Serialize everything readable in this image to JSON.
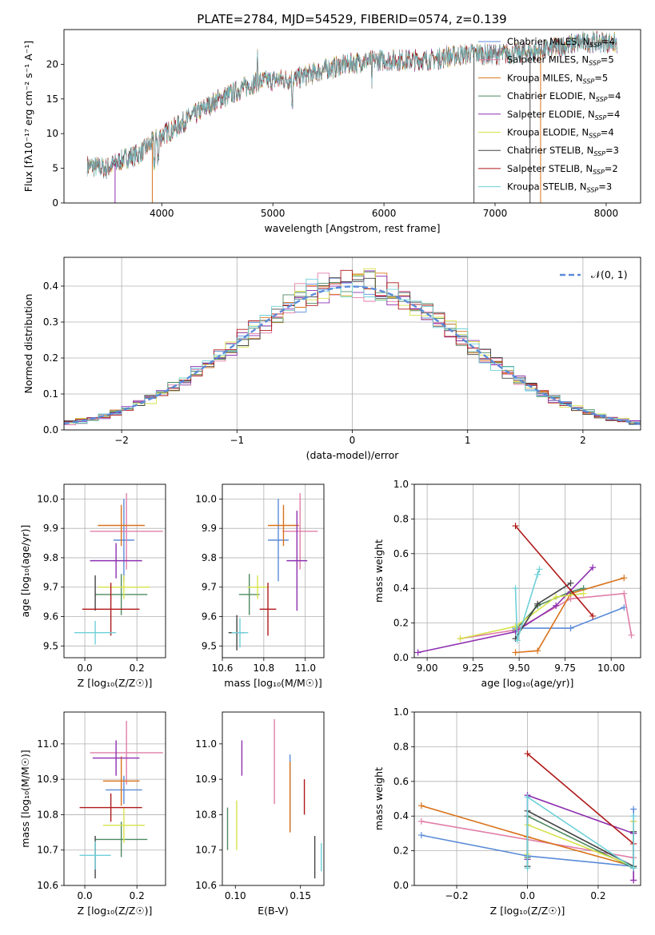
{
  "colors": [
    "#5b8bd8",
    "#e07ea8",
    "#d9731c",
    "#4e8a60",
    "#8e2fb0",
    "#d6e24a",
    "#444444",
    "#b01818",
    "#6fd0d8"
  ],
  "chart_data": [
    {
      "type": "line",
      "title": "PLATE=2784, MJD=54529, FIBERID=0574, z=0.139",
      "xlabel": "wavelength [Angstrom, rest frame]",
      "ylabel": "Flux [fλ10⁻¹⁷ erg cm⁻² s⁻¹ A⁻¹]",
      "xlim": [
        3120,
        8310
      ],
      "ylim": [
        0,
        25
      ],
      "xticks": [
        4000,
        5000,
        6000,
        7000,
        8000
      ],
      "yticks": [
        0,
        5,
        10,
        15,
        20
      ],
      "grid": false,
      "legend_position": "top-right",
      "continuum": {
        "x": [
          3320,
          3500,
          3650,
          3800,
          3950,
          4000,
          4100,
          4300,
          4500,
          4700,
          4860,
          5000,
          5200,
          5500,
          5800,
          6000,
          6200,
          6400,
          6600,
          6800,
          7000,
          7200,
          7400,
          7600,
          7800,
          8000,
          8100
        ],
        "y": [
          5.4,
          5.0,
          6.3,
          7.1,
          9.2,
          9.8,
          10.6,
          12.8,
          14.8,
          16.3,
          17.5,
          17.7,
          17.9,
          19.4,
          20.4,
          20.6,
          20.6,
          20.6,
          21.1,
          21.6,
          21.4,
          21.6,
          21.9,
          22.6,
          23.2,
          23.2,
          23.0
        ]
      },
      "series": [
        {
          "name": "Chabrier MILES, N$_{SSP}$=4",
          "label": "Chabrier MILES, N",
          "sub": "SSP",
          "suffix": "=4"
        },
        {
          "name": "Salpeter MILES, N$_{SSP}$=5",
          "label": "Salpeter MILES, N",
          "sub": "SSP",
          "suffix": "=5"
        },
        {
          "name": "Kroupa MILES, N$_{SSP}$=5",
          "label": "Kroupa MILES, N",
          "sub": "SSP",
          "suffix": "=5"
        },
        {
          "name": "Chabrier ELODIE, N$_{SSP}$=4",
          "label": "Chabrier ELODIE, N",
          "sub": "SSP",
          "suffix": "=4"
        },
        {
          "name": "Salpeter ELODIE, N$_{SSP}$=4",
          "label": "Salpeter ELODIE, N",
          "sub": "SSP",
          "suffix": "=4"
        },
        {
          "name": "Kroupa ELODIE, N$_{SSP}$=4",
          "label": "Kroupa ELODIE, N",
          "sub": "SSP",
          "suffix": "=4"
        },
        {
          "name": "Chabrier STELIB, N$_{SSP}$=3",
          "label": "Chabrier STELIB, N",
          "sub": "SSP",
          "suffix": "=3"
        },
        {
          "name": "Salpeter STELIB, N$_{SSP}$=2",
          "label": "Salpeter STELIB, N",
          "sub": "SSP",
          "suffix": "=2"
        },
        {
          "name": "Kroupa STELIB, N$_{SSP}$=3",
          "label": "Kroupa STELIB, N",
          "sub": "SSP",
          "suffix": "=3"
        }
      ]
    },
    {
      "type": "histogram",
      "xlabel": "(data-model)/error",
      "ylabel": "Normed distribution",
      "xlim": [
        -2.5,
        2.5
      ],
      "ylim": [
        0,
        0.48
      ],
      "xticks": [
        -2,
        -1,
        0,
        1,
        2
      ],
      "yticks": [
        0.0,
        0.1,
        0.2,
        0.3,
        0.4
      ],
      "grid": true,
      "bin_width": 0.1,
      "legend_position": "top-right",
      "reference_curve": {
        "name": "𝒩(0, 1)",
        "mean": 0,
        "sigma": 1
      }
    },
    {
      "type": "errorbar",
      "xlabel": "Z [log₁₀(Z/Z☉)]",
      "ylabel": "age  [log₁₀(age/yr)]",
      "xlim": [
        -0.08,
        0.31
      ],
      "ylim": [
        9.46,
        10.05
      ],
      "xticks": [
        0.0,
        0.2
      ],
      "yticks": [
        9.5,
        9.6,
        9.7,
        9.8,
        9.9,
        10.0
      ],
      "grid": true,
      "points": [
        {
          "x": 0.15,
          "xerr": 0.04,
          "y": 9.86,
          "yerr": 0.14
        },
        {
          "x": 0.16,
          "xerr": 0.14,
          "y": 9.89,
          "yerr": 0.13
        },
        {
          "x": 0.14,
          "xerr": 0.09,
          "y": 9.91,
          "yerr": 0.07
        },
        {
          "x": 0.14,
          "xerr": 0.1,
          "y": 9.675,
          "yerr": 0.07
        },
        {
          "x": 0.12,
          "xerr": 0.1,
          "y": 9.79,
          "yerr": 0.06
        },
        {
          "x": 0.15,
          "xerr": 0.1,
          "y": 9.7,
          "yerr": 0.04
        },
        {
          "x": 0.04,
          "xerr": 0.0,
          "y": 9.68,
          "yerr": 0.06
        },
        {
          "x": 0.1,
          "xerr": 0.11,
          "y": 9.625,
          "yerr": 0.09
        },
        {
          "x": 0.04,
          "xerr": 0.08,
          "y": 9.545,
          "yerr": 0.04
        }
      ]
    },
    {
      "type": "errorbar",
      "xlabel": "mass [log₁₀(M/M☉)]",
      "ylabel": "",
      "xlim": [
        10.6,
        11.09
      ],
      "ylim": [
        9.46,
        10.05
      ],
      "xticks": [
        10.6,
        10.8,
        11.0
      ],
      "yticks": [
        9.5,
        9.6,
        9.7,
        9.8,
        9.9,
        10.0
      ],
      "grid": true,
      "points": [
        {
          "x": 10.87,
          "xerr": 0.05,
          "y": 9.86,
          "yerr": 0.14
        },
        {
          "x": 10.975,
          "xerr": 0.085,
          "y": 9.89,
          "yerr": 0.13
        },
        {
          "x": 10.895,
          "xerr": 0.075,
          "y": 9.91,
          "yerr": 0.07
        },
        {
          "x": 10.73,
          "xerr": 0.05,
          "y": 9.675,
          "yerr": 0.07
        },
        {
          "x": 10.96,
          "xerr": 0.05,
          "y": 9.79,
          "yerr": 0.17
        },
        {
          "x": 10.77,
          "xerr": 0.05,
          "y": 9.7,
          "yerr": 0.04
        },
        {
          "x": 10.67,
          "xerr": 0.04,
          "y": 9.545,
          "yerr": 0.06
        },
        {
          "x": 10.82,
          "xerr": 0.04,
          "y": 9.625,
          "yerr": 0.09
        },
        {
          "x": 10.685,
          "xerr": 0.04,
          "y": 9.545,
          "yerr": 0.05
        }
      ]
    },
    {
      "type": "line",
      "xlabel": "age  [log₁₀(age/yr)]",
      "ylabel": "mass weight",
      "xlim": [
        8.93,
        10.16
      ],
      "ylim": [
        0,
        1
      ],
      "xticks": [
        9.0,
        9.25,
        9.5,
        9.75,
        10.0
      ],
      "yticks": [
        0.0,
        0.2,
        0.4,
        0.6,
        0.8,
        1.0
      ],
      "grid": true,
      "series_points": [
        {
          "x": [
            9.48,
            9.78,
            10.07
          ],
          "y": [
            0.17,
            0.17,
            0.29
          ]
        },
        {
          "x": [
            9.18,
            9.48,
            9.78,
            10.07,
            10.11
          ],
          "y": [
            0.11,
            0.16,
            0.34,
            0.37,
            0.13
          ]
        },
        {
          "x": [
            9.48,
            9.6,
            9.78,
            10.07
          ],
          "y": [
            0.03,
            0.04,
            0.37,
            0.46
          ]
        },
        {
          "x": [
            9.48,
            9.6,
            9.78,
            9.85
          ],
          "y": [
            0.16,
            0.3,
            0.38,
            0.4
          ]
        },
        {
          "x": [
            8.95,
            9.48,
            9.7,
            9.9
          ],
          "y": [
            0.03,
            0.15,
            0.3,
            0.52
          ]
        },
        {
          "x": [
            9.18,
            9.48,
            9.7,
            9.85
          ],
          "y": [
            0.11,
            0.18,
            0.35,
            0.37
          ]
        },
        {
          "x": [
            9.48,
            9.6,
            9.78
          ],
          "y": [
            0.11,
            0.31,
            0.43
          ]
        },
        {
          "x": [
            9.48,
            9.9
          ],
          "y": [
            0.76,
            0.24
          ]
        },
        {
          "x": [
            9.48,
            9.49,
            9.6,
            9.61
          ],
          "y": [
            0.4,
            0.1,
            0.48,
            0.51
          ]
        }
      ]
    },
    {
      "type": "errorbar",
      "xlabel": "Z [log₁₀(Z/Z☉)]",
      "ylabel": "mass [log₁₀(M/M☉)]",
      "xlim": [
        -0.08,
        0.31
      ],
      "ylim": [
        10.6,
        11.09
      ],
      "xticks": [
        0.0,
        0.2
      ],
      "yticks": [
        10.6,
        10.7,
        10.8,
        10.9,
        11.0
      ],
      "grid": true,
      "points": [
        {
          "x": 0.15,
          "xerr": 0.07,
          "y": 10.87,
          "yerr": 0.04
        },
        {
          "x": 0.16,
          "xerr": 0.14,
          "y": 10.975,
          "yerr": 0.09
        },
        {
          "x": 0.14,
          "xerr": 0.07,
          "y": 10.895,
          "yerr": 0.07
        },
        {
          "x": 0.14,
          "xerr": 0.1,
          "y": 10.73,
          "yerr": 0.05
        },
        {
          "x": 0.12,
          "xerr": 0.09,
          "y": 10.96,
          "yerr": 0.05
        },
        {
          "x": 0.15,
          "xerr": 0.08,
          "y": 10.77,
          "yerr": 0.05
        },
        {
          "x": 0.04,
          "xerr": 0.0,
          "y": 10.68,
          "yerr": 0.06
        },
        {
          "x": 0.1,
          "xerr": 0.12,
          "y": 10.82,
          "yerr": 0.04
        },
        {
          "x": 0.04,
          "xerr": 0.06,
          "y": 10.685,
          "yerr": 0.04
        }
      ]
    },
    {
      "type": "errorbar",
      "xlabel": "E(B-V)",
      "ylabel": "",
      "xlim": [
        0.09,
        0.168
      ],
      "ylim": [
        10.6,
        11.09
      ],
      "xticks": [
        0.1,
        0.15
      ],
      "yticks": [
        10.6,
        10.7,
        10.8,
        10.9,
        11.0
      ],
      "grid": false,
      "points": [
        {
          "x": 0.142,
          "y": 10.86,
          "yerr": 0.11
        },
        {
          "x": 0.13,
          "y": 10.95,
          "yerr": 0.12
        },
        {
          "x": 0.142,
          "y": 10.85,
          "yerr": 0.1
        },
        {
          "x": 0.094,
          "y": 10.76,
          "yerr": 0.06
        },
        {
          "x": 0.105,
          "y": 10.96,
          "yerr": 0.05
        },
        {
          "x": 0.101,
          "y": 10.77,
          "yerr": 0.07
        },
        {
          "x": 0.161,
          "y": 10.68,
          "yerr": 0.06
        },
        {
          "x": 0.153,
          "y": 10.85,
          "yerr": 0.05
        },
        {
          "x": 0.166,
          "y": 10.68,
          "yerr": 0.04
        }
      ]
    },
    {
      "type": "line",
      "xlabel": "Z [log₁₀(Z/Z☉)]",
      "ylabel": "mass weight",
      "xlim": [
        -0.32,
        0.32
      ],
      "ylim": [
        0,
        1
      ],
      "xticks": [
        -0.2,
        0.0,
        0.2
      ],
      "yticks": [
        0.0,
        0.2,
        0.4,
        0.6,
        0.8,
        1.0
      ],
      "grid": true,
      "series_points": [
        {
          "x": [
            -0.3,
            0.0,
            0.3,
            0.3
          ],
          "y": [
            0.29,
            0.17,
            0.11,
            0.44
          ]
        },
        {
          "x": [
            -0.3,
            0.3,
            0.3
          ],
          "y": [
            0.37,
            0.16,
            0.03
          ]
        },
        {
          "x": [
            -0.3,
            0.0,
            0.3,
            0.3
          ],
          "y": [
            0.46,
            0.28,
            0.11,
            0.37
          ]
        },
        {
          "x": [
            0.0,
            0.0,
            0.3,
            0.3
          ],
          "y": [
            0.16,
            0.4,
            0.1,
            0.3
          ]
        },
        {
          "x": [
            0.0,
            0.0,
            0.3,
            0.3
          ],
          "y": [
            0.15,
            0.52,
            0.3,
            0.03
          ]
        },
        {
          "x": [
            0.0,
            0.0,
            0.3,
            0.3
          ],
          "y": [
            0.18,
            0.35,
            0.11,
            0.37
          ]
        },
        {
          "x": [
            0.0,
            0.0,
            0.3,
            0.3
          ],
          "y": [
            0.11,
            0.43,
            0.11,
            0.31
          ]
        },
        {
          "x": [
            0.0,
            0.3
          ],
          "y": [
            0.76,
            0.24
          ]
        },
        {
          "x": [
            0.0,
            0.0,
            0.3,
            0.3
          ],
          "y": [
            0.1,
            0.51,
            0.1,
            0.4
          ]
        }
      ]
    }
  ]
}
